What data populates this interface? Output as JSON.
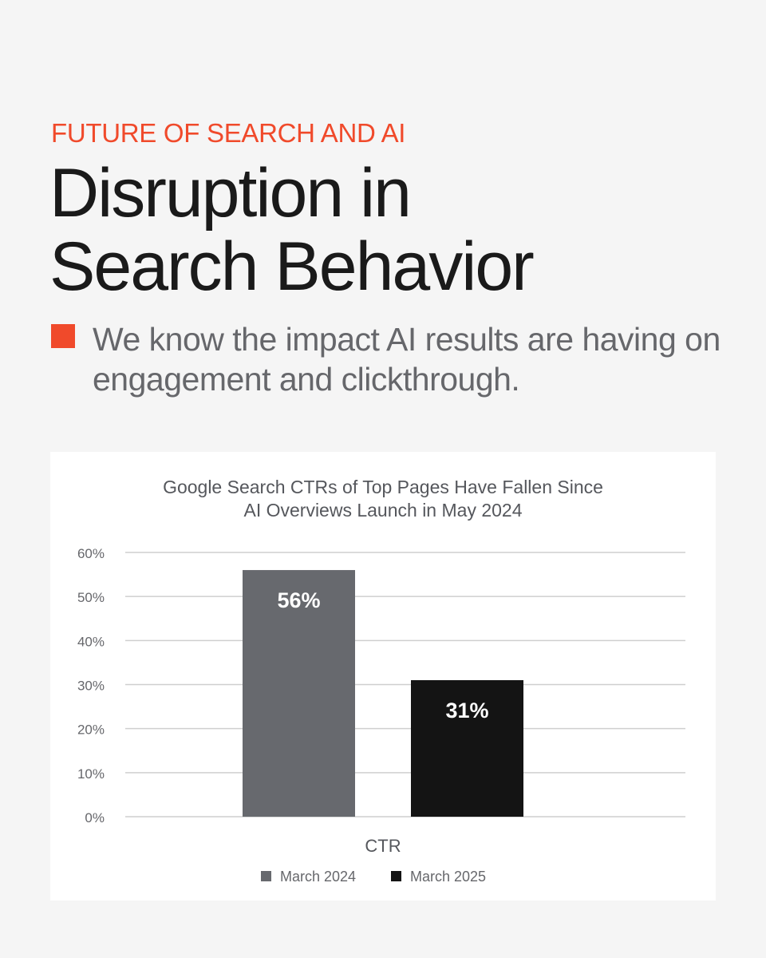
{
  "header": {
    "eyebrow": "FUTURE OF SEARCH AND AI",
    "headline_line1": "Disruption in",
    "headline_line2": "Search Behavior",
    "accent_color": "#f04a2b"
  },
  "bullet": {
    "text": "We know the impact AI results are having on engagement and clickthrough.",
    "icon": "square-bullet-icon"
  },
  "chart_data": {
    "type": "bar",
    "title_line1": "Google Search CTRs of Top Pages Have Fallen Since",
    "title_line2": "AI Overviews Launch in May 2024",
    "categories": [
      "CTR"
    ],
    "series": [
      {
        "name": "March 2024",
        "values": [
          56
        ],
        "label": "56%",
        "color": "#67696e"
      },
      {
        "name": "March 2025",
        "values": [
          31
        ],
        "label": "31%",
        "color": "#141414"
      }
    ],
    "yticks": [
      "0%",
      "10%",
      "20%",
      "30%",
      "40%",
      "50%",
      "60%"
    ],
    "ylim": [
      0,
      60
    ],
    "grid": true,
    "legend_position": "bottom"
  }
}
